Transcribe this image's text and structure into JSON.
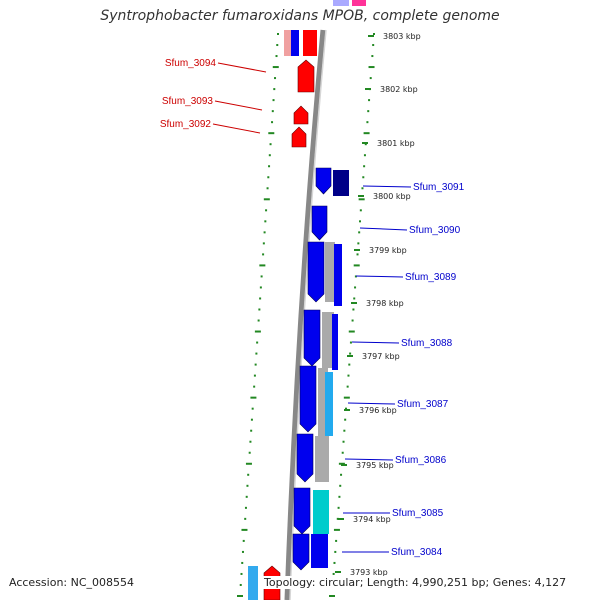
{
  "title": "Syntrophobacter fumaroxidans MPOB, complete genome",
  "footer": {
    "accession": "Accession: NC_008554",
    "topology": "Topology: circular",
    "length": "Length: 4,990,251 bp",
    "genes": "Genes: 4,127",
    "separator": "; "
  },
  "colors": {
    "forward_cds": "#ff0000",
    "reverse_cds": "#0000ee",
    "reverse_cds_dark": "#000088",
    "gene_label_forward": "#cc0000",
    "gene_label_reverse": "#0000cc",
    "backbone": "#888888",
    "tick_dots": "#228822",
    "gc_cyan": "#00cccc",
    "gc_gray": "#aaaaaa",
    "magenta": "#ff3399"
  },
  "kbp_ticks": [
    "3803 kbp",
    "3802 kbp",
    "3801 kbp",
    "3800 kbp",
    "3799 kbp",
    "3798 kbp",
    "3797 kbp",
    "3796 kbp",
    "3795 kbp",
    "3794 kbp",
    "3793 kbp"
  ],
  "forward_genes": [
    "Sfum_3094",
    "Sfum_3093",
    "Sfum_3092"
  ],
  "reverse_genes": [
    "Sfum_3091",
    "Sfum_3090",
    "Sfum_3089",
    "Sfum_3088",
    "Sfum_3087",
    "Sfum_3086",
    "Sfum_3085",
    "Sfum_3084"
  ]
}
